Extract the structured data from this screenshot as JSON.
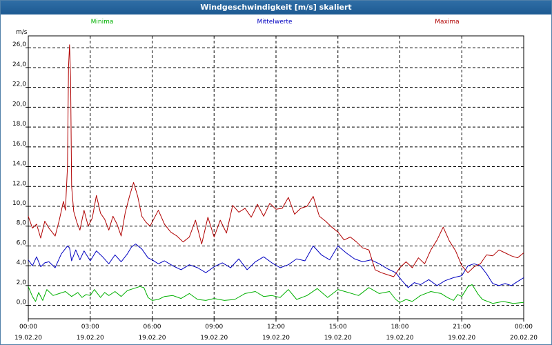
{
  "window": {
    "title": "Windgeschwindigkeit [m/s] skaliert"
  },
  "chart_data": {
    "type": "line",
    "title": "Windgeschwindigkeit [m/s] skaliert",
    "ylabel": "m/s",
    "ylim": [
      -1.35,
      27.2
    ],
    "yticks": [
      0.0,
      2.0,
      4.0,
      6.0,
      8.0,
      10.0,
      12.0,
      14.0,
      16.0,
      18.0,
      20.0,
      22.0,
      24.0,
      26.0
    ],
    "ytick_labels": [
      "0,0",
      "2,0",
      "4,0",
      "6,0",
      "8,0",
      "10,0",
      "12,0",
      "14,0",
      "16,0",
      "18,0",
      "20,0",
      "22,0",
      "24,0",
      "26,0"
    ],
    "x_unit": "hours since 19.02.20 00:00",
    "xlim": [
      0,
      24
    ],
    "xticks": [
      {
        "x": 0,
        "time": "00:00",
        "date": "19.02.20"
      },
      {
        "x": 3,
        "time": "03:00",
        "date": "19.02.20"
      },
      {
        "x": 6,
        "time": "06:00",
        "date": "19.02.20"
      },
      {
        "x": 9,
        "time": "09:00",
        "date": "19.02.20"
      },
      {
        "x": 12,
        "time": "12:00",
        "date": "19.02.20"
      },
      {
        "x": 15,
        "time": "15:00",
        "date": "19.02.20"
      },
      {
        "x": 18,
        "time": "18:00",
        "date": "19.02.20"
      },
      {
        "x": 21,
        "time": "21:00",
        "date": "19.02.20"
      },
      {
        "x": 24,
        "time": "00:00",
        "date": "20.02.20"
      }
    ],
    "grid": true,
    "legend_position": "top",
    "series": [
      {
        "name": "Minima",
        "color": "#00b000",
        "x": [
          0,
          0.2,
          0.35,
          0.5,
          0.7,
          0.9,
          1.2,
          1.5,
          1.8,
          2.1,
          2.4,
          2.6,
          2.8,
          3.0,
          3.2,
          3.5,
          3.7,
          3.9,
          4.2,
          4.5,
          4.8,
          5.1,
          5.4,
          5.6,
          5.8,
          6.0,
          6.3,
          6.6,
          7.0,
          7.4,
          7.8,
          8.2,
          8.6,
          9.0,
          9.5,
          10.0,
          10.5,
          11.0,
          11.4,
          11.8,
          12.2,
          12.6,
          13.0,
          13.5,
          14.0,
          14.5,
          15.0,
          15.5,
          16.0,
          16.5,
          17.0,
          17.5,
          17.8,
          18.0,
          18.3,
          18.6,
          19.0,
          19.5,
          20.0,
          20.3,
          20.6,
          20.8,
          21.0,
          21.3,
          21.5,
          21.8,
          22.0,
          22.5,
          23.0,
          23.5,
          24.0
        ],
        "y": [
          1.9,
          0.9,
          0.4,
          1.3,
          0.5,
          1.6,
          1.0,
          1.2,
          1.4,
          0.9,
          1.3,
          0.8,
          1.1,
          1.0,
          1.6,
          0.8,
          1.3,
          1.0,
          1.4,
          0.9,
          1.5,
          1.7,
          1.9,
          1.8,
          0.8,
          0.5,
          0.6,
          0.9,
          1.0,
          0.7,
          1.2,
          0.6,
          0.5,
          0.7,
          0.5,
          0.6,
          1.2,
          1.4,
          0.9,
          1.0,
          0.8,
          1.6,
          0.6,
          1.0,
          1.7,
          0.8,
          1.6,
          1.3,
          1.0,
          1.8,
          1.2,
          1.4,
          0.6,
          0.3,
          0.6,
          0.4,
          1.0,
          1.4,
          1.2,
          0.8,
          0.5,
          1.1,
          0.9,
          1.9,
          2.1,
          1.1,
          0.6,
          0.2,
          0.4,
          0.2,
          0.3
        ]
      },
      {
        "name": "Mittelwerte",
        "color": "#0000c0",
        "x": [
          0,
          0.2,
          0.4,
          0.6,
          0.8,
          1.0,
          1.3,
          1.6,
          1.9,
          2.0,
          2.1,
          2.3,
          2.5,
          2.7,
          3.0,
          3.3,
          3.6,
          3.9,
          4.2,
          4.5,
          4.8,
          5.0,
          5.2,
          5.5,
          5.8,
          6.0,
          6.3,
          6.6,
          7.0,
          7.4,
          7.8,
          8.2,
          8.6,
          9.0,
          9.4,
          9.8,
          10.2,
          10.6,
          11.0,
          11.4,
          11.8,
          12.2,
          12.6,
          13.0,
          13.4,
          13.8,
          14.2,
          14.6,
          15.0,
          15.4,
          15.8,
          16.2,
          16.6,
          17.0,
          17.4,
          17.8,
          18.1,
          18.4,
          18.7,
          19.0,
          19.4,
          19.8,
          20.2,
          20.6,
          21.0,
          21.3,
          21.6,
          21.9,
          22.2,
          22.5,
          22.8,
          23.1,
          23.4,
          23.7,
          24.0
        ],
        "y": [
          4.6,
          4.0,
          4.9,
          3.9,
          4.3,
          4.4,
          3.8,
          5.2,
          6.0,
          5.8,
          4.5,
          5.6,
          4.6,
          5.5,
          4.5,
          5.5,
          4.9,
          4.2,
          5.1,
          4.4,
          5.2,
          5.9,
          6.2,
          5.7,
          4.8,
          4.6,
          4.2,
          4.5,
          4.0,
          3.6,
          4.1,
          3.8,
          3.3,
          3.9,
          4.3,
          3.8,
          4.7,
          3.6,
          4.4,
          4.9,
          4.3,
          3.8,
          4.1,
          4.7,
          4.5,
          6.0,
          5.1,
          4.6,
          6.0,
          5.3,
          4.7,
          4.4,
          4.6,
          4.2,
          3.7,
          3.3,
          2.5,
          1.8,
          2.3,
          2.1,
          2.6,
          2.0,
          2.5,
          2.8,
          3.0,
          4.0,
          4.2,
          4.0,
          3.2,
          2.2,
          2.0,
          2.2,
          2.0,
          2.4,
          2.8
        ]
      },
      {
        "name": "Maxima",
        "color": "#b00000",
        "x": [
          0,
          0.2,
          0.4,
          0.6,
          0.8,
          1.0,
          1.3,
          1.5,
          1.7,
          1.8,
          1.9,
          1.95,
          2.0,
          2.05,
          2.1,
          2.2,
          2.35,
          2.5,
          2.7,
          2.9,
          3.1,
          3.3,
          3.5,
          3.7,
          3.9,
          4.1,
          4.3,
          4.5,
          4.7,
          4.9,
          5.1,
          5.3,
          5.5,
          5.7,
          5.9,
          6.1,
          6.3,
          6.6,
          6.9,
          7.2,
          7.5,
          7.8,
          8.1,
          8.4,
          8.7,
          9.0,
          9.3,
          9.6,
          9.9,
          10.2,
          10.5,
          10.8,
          11.1,
          11.4,
          11.7,
          12.0,
          12.3,
          12.6,
          12.9,
          13.2,
          13.5,
          13.8,
          14.1,
          14.4,
          14.7,
          15.0,
          15.3,
          15.6,
          15.9,
          16.2,
          16.5,
          16.8,
          17.1,
          17.4,
          17.7,
          18.0,
          18.3,
          18.6,
          18.9,
          19.2,
          19.5,
          19.8,
          20.1,
          20.4,
          20.7,
          21.0,
          21.3,
          21.6,
          21.9,
          22.2,
          22.5,
          22.8,
          23.1,
          23.4,
          23.7,
          24.0
        ],
        "y": [
          9.0,
          7.8,
          8.2,
          6.8,
          8.5,
          7.8,
          7.0,
          8.6,
          10.5,
          9.6,
          14.0,
          24.0,
          26.3,
          23.0,
          12.0,
          9.5,
          8.4,
          7.6,
          9.6,
          8.0,
          8.8,
          11.1,
          9.3,
          8.7,
          7.6,
          9.0,
          8.2,
          7.0,
          9.4,
          11.0,
          12.4,
          11.0,
          9.0,
          8.4,
          8.0,
          8.8,
          9.6,
          8.2,
          7.4,
          7.0,
          6.4,
          6.9,
          8.6,
          6.2,
          8.9,
          6.9,
          8.6,
          7.3,
          10.1,
          9.4,
          9.8,
          8.9,
          10.2,
          9.0,
          10.3,
          9.7,
          9.8,
          10.9,
          9.2,
          9.8,
          10.0,
          11.0,
          9.0,
          8.5,
          7.9,
          7.4,
          6.6,
          6.9,
          6.4,
          5.8,
          5.6,
          3.6,
          3.3,
          3.1,
          2.9,
          3.8,
          4.4,
          3.8,
          4.8,
          4.2,
          5.6,
          6.6,
          7.9,
          6.5,
          5.5,
          4.0,
          3.3,
          3.9,
          4.2,
          5.1,
          5.0,
          5.6,
          5.3,
          5.0,
          4.8,
          5.3
        ]
      }
    ]
  }
}
